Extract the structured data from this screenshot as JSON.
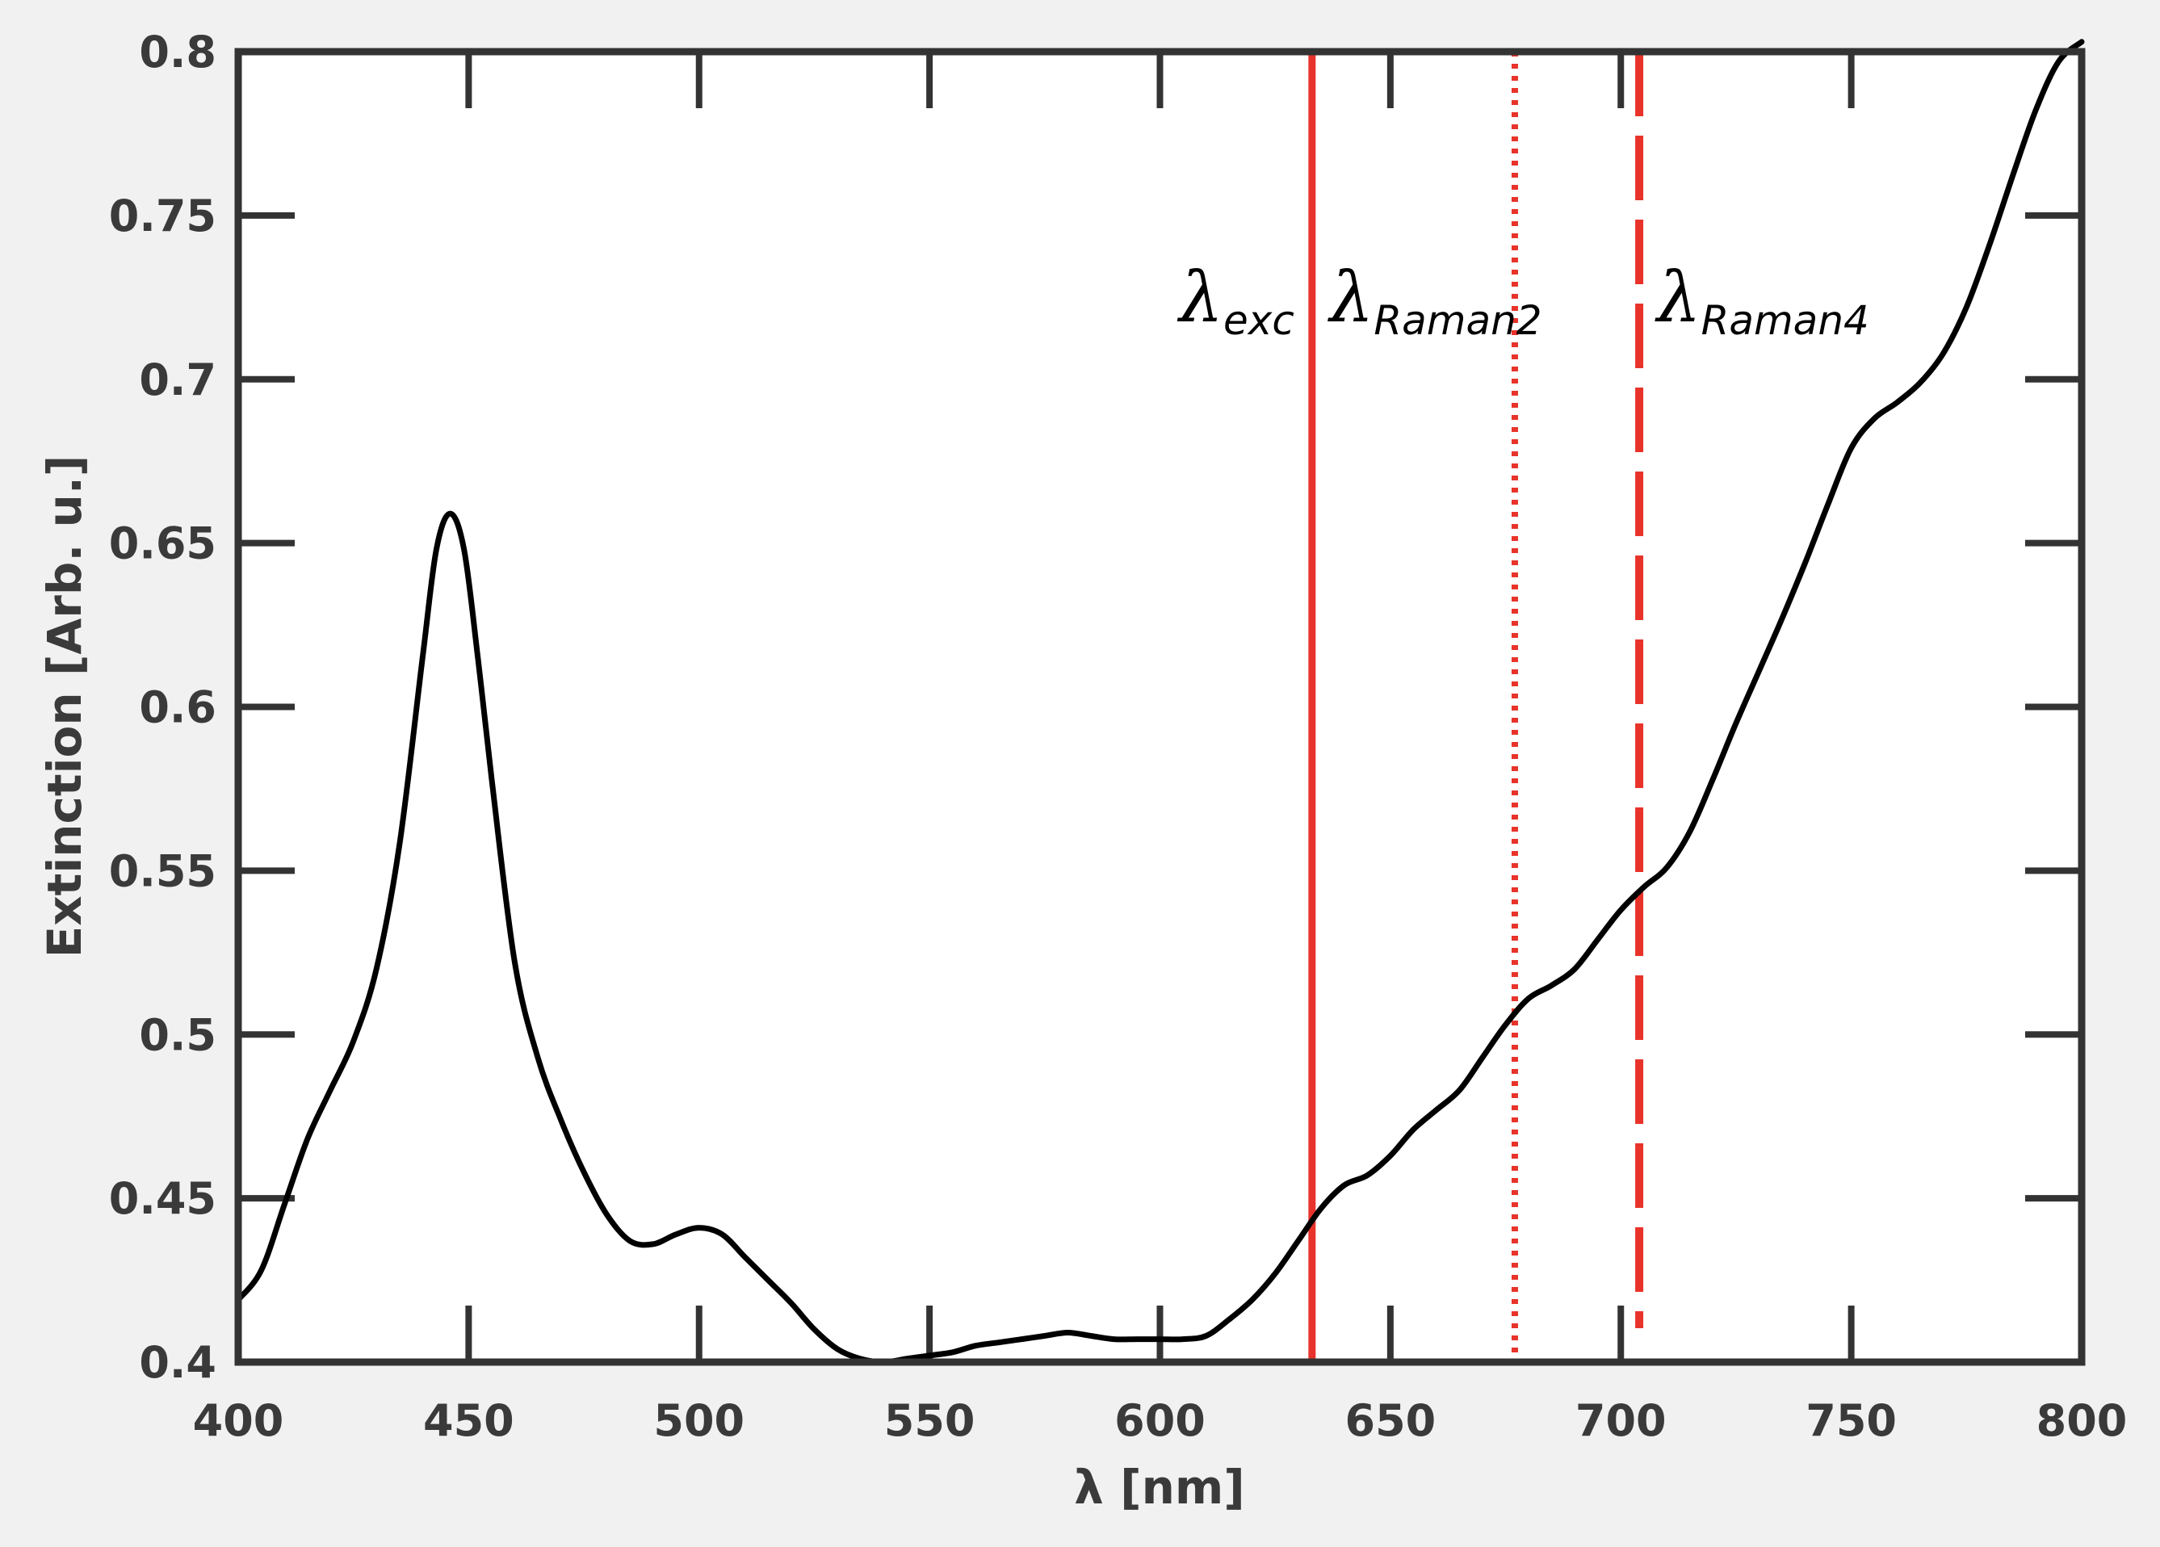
{
  "chart_data": {
    "type": "line",
    "title": "",
    "xlabel": "λ [nm]",
    "ylabel": "Extinction [Arb. u.]",
    "xlim": [
      400,
      800
    ],
    "ylim": [
      0.4,
      0.8
    ],
    "x_ticks": [
      "400",
      "450",
      "500",
      "550",
      "600",
      "650",
      "700",
      "750",
      "800"
    ],
    "y_ticks": [
      "0.4",
      "0.45",
      "0.5",
      "0.55",
      "0.6",
      "0.65",
      "0.7",
      "0.75",
      "0.8"
    ],
    "grid": false,
    "legend": "none",
    "series": [
      {
        "color": "#000000",
        "x": [
          400,
          405,
          410,
          415,
          420,
          425,
          430,
          435,
          440,
          443,
          446,
          449,
          452,
          455,
          460,
          465,
          470,
          475,
          480,
          485,
          490,
          495,
          500,
          505,
          510,
          515,
          520,
          525,
          530,
          535,
          540,
          545,
          550,
          555,
          560,
          565,
          570,
          575,
          580,
          585,
          590,
          595,
          600,
          605,
          610,
          615,
          620,
          625,
          630,
          635,
          640,
          645,
          650,
          655,
          660,
          665,
          670,
          675,
          680,
          685,
          690,
          695,
          700,
          705,
          710,
          715,
          720,
          725,
          730,
          735,
          740,
          745,
          750,
          755,
          760,
          765,
          770,
          775,
          780,
          785,
          790,
          795,
          800
        ],
        "values": [
          0.419,
          0.428,
          0.448,
          0.468,
          0.483,
          0.498,
          0.52,
          0.558,
          0.615,
          0.648,
          0.659,
          0.648,
          0.615,
          0.578,
          0.522,
          0.493,
          0.474,
          0.458,
          0.445,
          0.437,
          0.436,
          0.439,
          0.441,
          0.439,
          0.432,
          0.425,
          0.418,
          0.41,
          0.404,
          0.401,
          0.4,
          0.401,
          0.402,
          0.403,
          0.405,
          0.406,
          0.407,
          0.408,
          0.409,
          0.408,
          0.407,
          0.407,
          0.407,
          0.407,
          0.408,
          0.413,
          0.419,
          0.427,
          0.437,
          0.447,
          0.454,
          0.457,
          0.463,
          0.471,
          0.477,
          0.483,
          0.493,
          0.503,
          0.511,
          0.515,
          0.52,
          0.529,
          0.538,
          0.545,
          0.551,
          0.562,
          0.578,
          0.595,
          0.611,
          0.627,
          0.644,
          0.662,
          0.679,
          0.688,
          0.693,
          0.699,
          0.708,
          0.722,
          0.741,
          0.762,
          0.782,
          0.797,
          0.803
        ]
      }
    ],
    "vlines": [
      {
        "x": 633,
        "style": "solid",
        "color": "#e8332a",
        "label_main": "λ",
        "label_sub": "exc",
        "label_x": 633,
        "label_side": "left"
      },
      {
        "x": 677,
        "style": "dotted",
        "color": "#e8332a",
        "label_main": "λ",
        "label_sub": "Raman2",
        "label_x": 633,
        "label_side": "right"
      },
      {
        "x": 704,
        "style": "dashed",
        "color": "#e8332a",
        "label_main": "λ",
        "label_sub": "Raman4",
        "label_x": 704,
        "label_side": "right"
      }
    ]
  }
}
